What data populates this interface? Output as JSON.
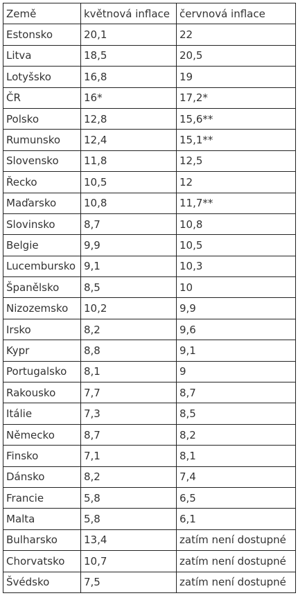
{
  "table": {
    "header": [
      "Země",
      "květnová inflace",
      "červnová inflace"
    ],
    "rows": [
      [
        "Estonsko",
        "20,1",
        "22"
      ],
      [
        "Litva",
        "18,5",
        "20,5"
      ],
      [
        "Lotyšsko",
        "16,8",
        "19"
      ],
      [
        "ČR",
        "16*",
        "17,2*"
      ],
      [
        "Polsko",
        "12,8",
        "15,6**"
      ],
      [
        "Rumunsko",
        "12,4",
        "15,1**"
      ],
      [
        "Slovensko",
        "11,8",
        "12,5"
      ],
      [
        "Řecko",
        "10,5",
        "12"
      ],
      [
        "Maďarsko",
        "10,8",
        "11,7**"
      ],
      [
        "Slovinsko",
        "8,7",
        "10,8"
      ],
      [
        "Belgie",
        "9,9",
        "10,5"
      ],
      [
        "Lucembursko",
        "9,1",
        "10,3"
      ],
      [
        "Španělsko",
        "8,5",
        "10"
      ],
      [
        "Nizozemsko",
        "10,2",
        "9,9"
      ],
      [
        "Irsko",
        "8,2",
        "9,6"
      ],
      [
        "Kypr",
        "8,8",
        "9,1"
      ],
      [
        "Portugalsko",
        "8,1",
        "9"
      ],
      [
        "Rakousko",
        "7,7",
        "8,7"
      ],
      [
        "Itálie",
        "7,3",
        "8,5"
      ],
      [
        "Německo",
        "8,7",
        "8,2"
      ],
      [
        "Finsko",
        "7,1",
        "8,1"
      ],
      [
        "Dánsko",
        "8,2",
        "7,4"
      ],
      [
        "Francie",
        "5,8",
        "6,5"
      ],
      [
        "Malta",
        "5,8",
        "6,1"
      ],
      [
        "Bulharsko",
        "13,4",
        "zatím není dostupné"
      ],
      [
        "Chorvatsko",
        "10,7",
        "zatím není dostupné"
      ],
      [
        "Švédsko",
        "7,5",
        "zatím není dostupné"
      ]
    ]
  }
}
